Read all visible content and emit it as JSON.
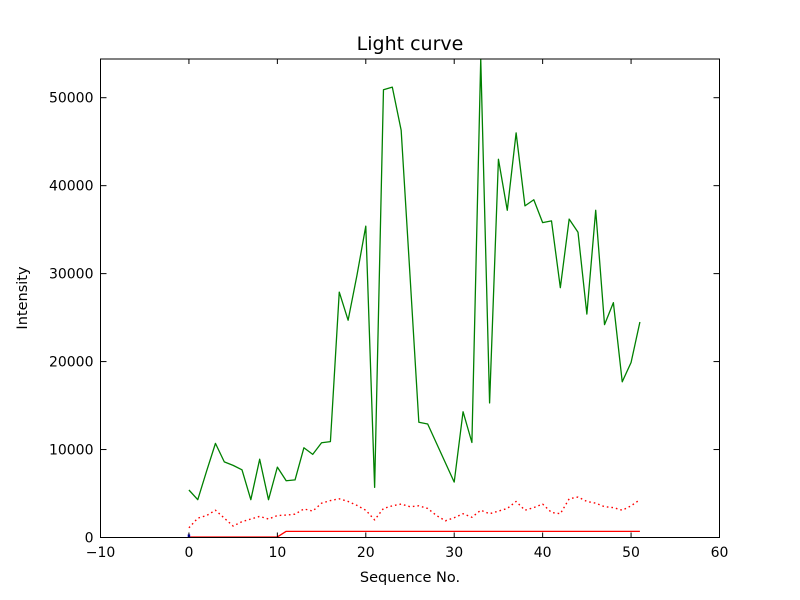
{
  "figure": {
    "background": "#ffffff",
    "axes": {
      "spine_color": "#000000",
      "tick_color": "#000000",
      "text_color": "#000000",
      "plot_background": "#ffffff"
    }
  },
  "chart_data": {
    "type": "line",
    "title": "Light curve",
    "xlabel": "Sequence No.",
    "ylabel": "Intensity",
    "xlim": [
      -10,
      60
    ],
    "ylim": [
      0,
      54400
    ],
    "xticks": [
      -10,
      0,
      10,
      20,
      30,
      40,
      50,
      60
    ],
    "yticks": [
      0,
      10000,
      20000,
      30000,
      40000,
      50000
    ],
    "grid": false,
    "legend": null,
    "series": [
      {
        "name": "main-light-curve",
        "color": "#008000",
        "style": "solid",
        "width": 1.3,
        "x_range": [
          0,
          51
        ],
        "y": [
          5400,
          4300,
          7550,
          10700,
          8600,
          8200,
          7700,
          4300,
          8900,
          4300,
          8000,
          6450,
          6550,
          10200,
          9450,
          10770,
          10900,
          27900,
          24700,
          29800,
          35400,
          5700,
          50900,
          51200,
          46300,
          29800,
          13100,
          12900,
          10700,
          8500,
          6300,
          14300,
          10800,
          54400,
          15300,
          43000,
          37200,
          46000,
          37700,
          38400,
          35800,
          36000,
          28400,
          36200,
          34700,
          25400,
          37200,
          24200,
          26700,
          17700,
          19900,
          24500
        ]
      },
      {
        "name": "secondary-dotted-curve",
        "color": "#ff0000",
        "style": "dotted",
        "width": 1.4,
        "x_range": [
          0,
          51
        ],
        "y": [
          1100,
          2200,
          2500,
          3100,
          2200,
          1300,
          1800,
          2100,
          2400,
          2100,
          2500,
          2550,
          2650,
          3250,
          3000,
          3900,
          4200,
          4400,
          4100,
          3650,
          3100,
          2000,
          3300,
          3600,
          3800,
          3500,
          3600,
          3300,
          2500,
          1900,
          2250,
          2700,
          2300,
          3100,
          2700,
          3000,
          3300,
          4100,
          3100,
          3400,
          3800,
          2850,
          2700,
          4400,
          4600,
          4100,
          3900,
          3500,
          3400,
          3100,
          3600,
          4300
        ]
      },
      {
        "name": "baseline-step-curve",
        "color": "#ff0000",
        "style": "solid",
        "width": 1.3,
        "x_range": [
          0,
          51
        ],
        "y": [
          60,
          60,
          60,
          60,
          60,
          60,
          60,
          60,
          60,
          60,
          60,
          700,
          700,
          700,
          700,
          700,
          700,
          700,
          700,
          700,
          700,
          700,
          700,
          700,
          700,
          700,
          700,
          700,
          700,
          700,
          700,
          700,
          700,
          700,
          700,
          700,
          700,
          700,
          700,
          700,
          700,
          700,
          700,
          700,
          700,
          700,
          700,
          700,
          700,
          700,
          700,
          700
        ]
      },
      {
        "name": "blue-origin-mark",
        "color": "#0000ff",
        "style": "solid",
        "width": 2.5,
        "x": [
          0,
          0
        ],
        "y": [
          0,
          350
        ]
      }
    ]
  }
}
